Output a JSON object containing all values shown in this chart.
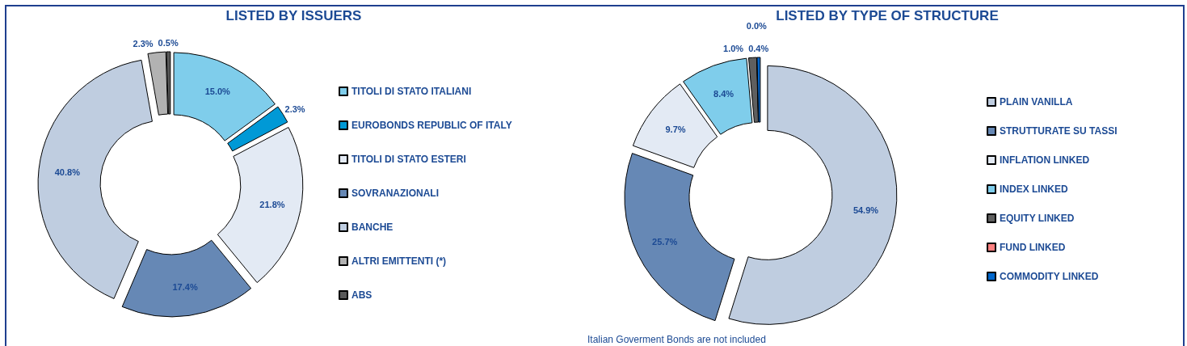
{
  "chart_data": [
    {
      "type": "donut",
      "title": "LISTED BY ISSUERS",
      "categories": [
        "TITOLI DI STATO ITALIANI",
        "EUROBONDS REPUBLIC OF ITALY",
        "TITOLI DI STATO ESTERI",
        "SOVRANAZIONALI",
        "BANCHE",
        "ALTRI EMITTENTI (*)",
        "ABS"
      ],
      "values": [
        15.0,
        2.3,
        21.8,
        17.4,
        40.8,
        2.3,
        0.5
      ],
      "value_labels": [
        "15.0%",
        "2.3%",
        "21.8%",
        "17.4%",
        "40.8%",
        "2.3%",
        "0.5%"
      ],
      "colors": [
        "#7fcdeb",
        "#0099d6",
        "#e3eaf4",
        "#6688b5",
        "#bfcde0",
        "#b2b2b2",
        "#595959"
      ],
      "legend": "right"
    },
    {
      "type": "donut",
      "title": "LISTED BY TYPE OF STRUCTURE",
      "categories": [
        "PLAIN VANILLA",
        "STRUTTURATE SU TASSI",
        "INFLATION LINKED",
        "INDEX LINKED",
        "EQUITY LINKED",
        "FUND LINKED",
        "COMMODITY LINKED"
      ],
      "values": [
        54.9,
        25.7,
        9.7,
        8.4,
        1.0,
        0.0,
        0.4
      ],
      "value_labels": [
        "54.9%",
        "25.7%",
        "9.7%",
        "8.4%",
        "1.0%",
        "0.0%",
        "0.4%"
      ],
      "colors": [
        "#bfcde0",
        "#6688b5",
        "#e3eaf4",
        "#7fcdeb",
        "#5f5f5f",
        "#ff8080",
        "#0066cc"
      ],
      "legend": "right",
      "annotations": [
        "Italian Goverment Bonds are not included"
      ]
    }
  ]
}
